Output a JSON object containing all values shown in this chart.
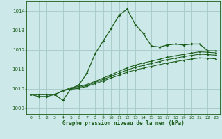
{
  "title": "Graphe pression niveau de la mer (hPa)",
  "bg_color": "#cce8e8",
  "grid_color": "#aacccc",
  "line_color": "#1a5c1a",
  "xlim": [
    -0.5,
    23.5
  ],
  "ylim": [
    1008.7,
    1014.5
  ],
  "yticks": [
    1009,
    1010,
    1011,
    1012,
    1013,
    1014
  ],
  "xticks": [
    0,
    1,
    2,
    3,
    4,
    5,
    6,
    7,
    8,
    9,
    10,
    11,
    12,
    13,
    14,
    15,
    16,
    17,
    18,
    19,
    20,
    21,
    22,
    23
  ],
  "series": [
    [
      1009.7,
      1009.6,
      1009.6,
      1009.7,
      1009.4,
      1010.0,
      1010.2,
      1010.8,
      1011.8,
      1012.45,
      1013.1,
      1013.8,
      1014.1,
      1013.3,
      1012.85,
      1012.2,
      1012.15,
      1012.25,
      1012.3,
      1012.25,
      1012.3,
      1012.3,
      1011.95,
      1011.95
    ],
    [
      1009.7,
      1009.7,
      1009.7,
      1009.7,
      1009.9,
      1010.05,
      1010.12,
      1010.22,
      1010.38,
      1010.55,
      1010.72,
      1010.9,
      1011.08,
      1011.22,
      1011.33,
      1011.42,
      1011.52,
      1011.62,
      1011.7,
      1011.77,
      1011.84,
      1011.9,
      1011.88,
      1011.85
    ],
    [
      1009.7,
      1009.7,
      1009.7,
      1009.7,
      1009.9,
      1010.0,
      1010.07,
      1010.17,
      1010.32,
      1010.48,
      1010.64,
      1010.8,
      1010.97,
      1011.1,
      1011.2,
      1011.3,
      1011.4,
      1011.5,
      1011.58,
      1011.65,
      1011.72,
      1011.78,
      1011.76,
      1011.73
    ],
    [
      1009.7,
      1009.7,
      1009.7,
      1009.7,
      1009.9,
      1009.97,
      1010.02,
      1010.12,
      1010.26,
      1010.4,
      1010.55,
      1010.7,
      1010.85,
      1010.97,
      1011.06,
      1011.15,
      1011.24,
      1011.33,
      1011.4,
      1011.47,
      1011.53,
      1011.59,
      1011.57,
      1011.54
    ]
  ]
}
